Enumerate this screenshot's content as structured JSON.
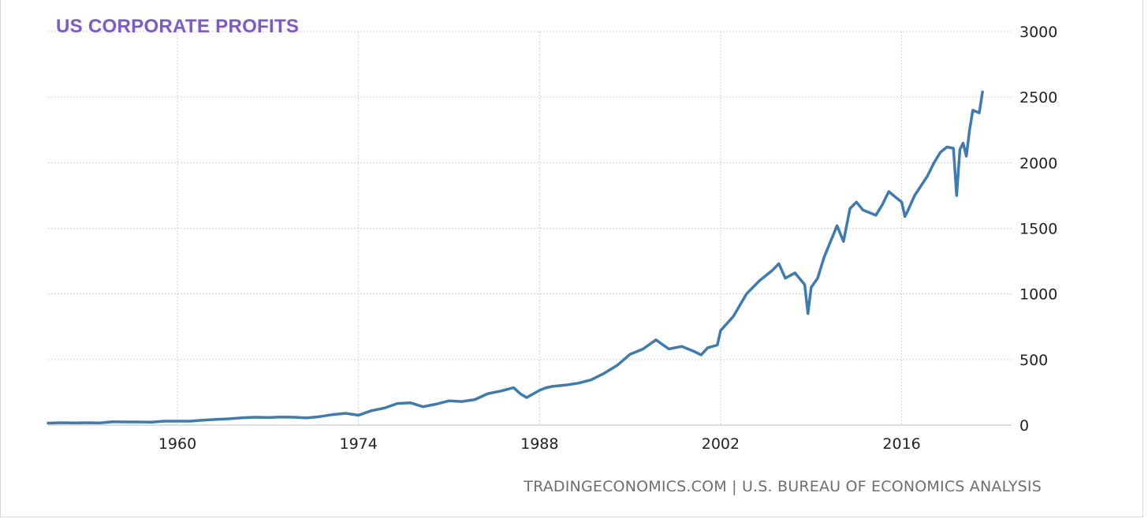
{
  "title": "US CORPORATE PROFITS",
  "source": "TRADINGECONOMICS.COM | U.S. BUREAU OF ECONOMICS ANALYSIS",
  "colors": {
    "line": "#3d7bb0",
    "title": "#7b5cc7",
    "grid": "#d0d0d0",
    "source": "#6f6f6f"
  },
  "chart_data": {
    "type": "line",
    "title": "US CORPORATE PROFITS",
    "xlabel": "",
    "ylabel": "",
    "xlim": [
      1950,
      2022.5
    ],
    "ylim": [
      0,
      3000
    ],
    "x_ticks": [
      1960,
      1974,
      1988,
      2002,
      2016
    ],
    "y_ticks": [
      0,
      500,
      1000,
      1500,
      2000,
      2500,
      3000
    ],
    "y_axis_position": "right",
    "grid": true,
    "legend": "none",
    "series": [
      {
        "name": "",
        "x": [
          1950,
          1951,
          1952,
          1953,
          1954,
          1955,
          1956,
          1957,
          1958,
          1959,
          1960,
          1961,
          1962,
          1963,
          1964,
          1965,
          1966,
          1967,
          1968,
          1969,
          1970,
          1971,
          1972,
          1973,
          1974,
          1975,
          1976,
          1977,
          1978,
          1979,
          1979.5,
          1980,
          1981,
          1982,
          1983,
          1984,
          1985,
          1986,
          1986.5,
          1987,
          1988,
          1988.5,
          1989,
          1990,
          1991,
          1992,
          1993,
          1994,
          1995,
          1996,
          1997,
          1998,
          1999,
          2000,
          2000.5,
          2001,
          2001.75,
          2002,
          2003,
          2004,
          2005,
          2006,
          2006.5,
          2007,
          2007.75,
          2008.25,
          2008.5,
          2008.75,
          2009,
          2009.5,
          2010,
          2010.5,
          2011,
          2011.5,
          2012,
          2012.5,
          2013,
          2014,
          2014.5,
          2015,
          2015.5,
          2016,
          2016.25,
          2016.5,
          2017,
          2018,
          2018.5,
          2019,
          2019.5,
          2020,
          2020.25,
          2020.5,
          2020.75,
          2021,
          2021.25,
          2021.5,
          2022,
          2022.25
        ],
        "values": [
          15,
          18,
          17,
          18,
          16,
          25,
          24,
          24,
          22,
          30,
          30,
          30,
          38,
          44,
          48,
          56,
          60,
          58,
          62,
          60,
          55,
          65,
          80,
          90,
          75,
          110,
          130,
          165,
          170,
          140,
          150,
          160,
          185,
          180,
          195,
          240,
          260,
          285,
          240,
          210,
          265,
          285,
          295,
          305,
          320,
          345,
          395,
          455,
          540,
          580,
          650,
          580,
          600,
          560,
          535,
          590,
          610,
          720,
          830,
          1000,
          1100,
          1180,
          1230,
          1120,
          1160,
          1100,
          1070,
          850,
          1050,
          1120,
          1280,
          1400,
          1520,
          1400,
          1650,
          1700,
          1640,
          1600,
          1680,
          1780,
          1740,
          1700,
          1590,
          1640,
          1750,
          1900,
          2000,
          2080,
          2120,
          2110,
          1750,
          2100,
          2150,
          2050,
          2250,
          2400,
          2380,
          2540
        ]
      }
    ]
  }
}
